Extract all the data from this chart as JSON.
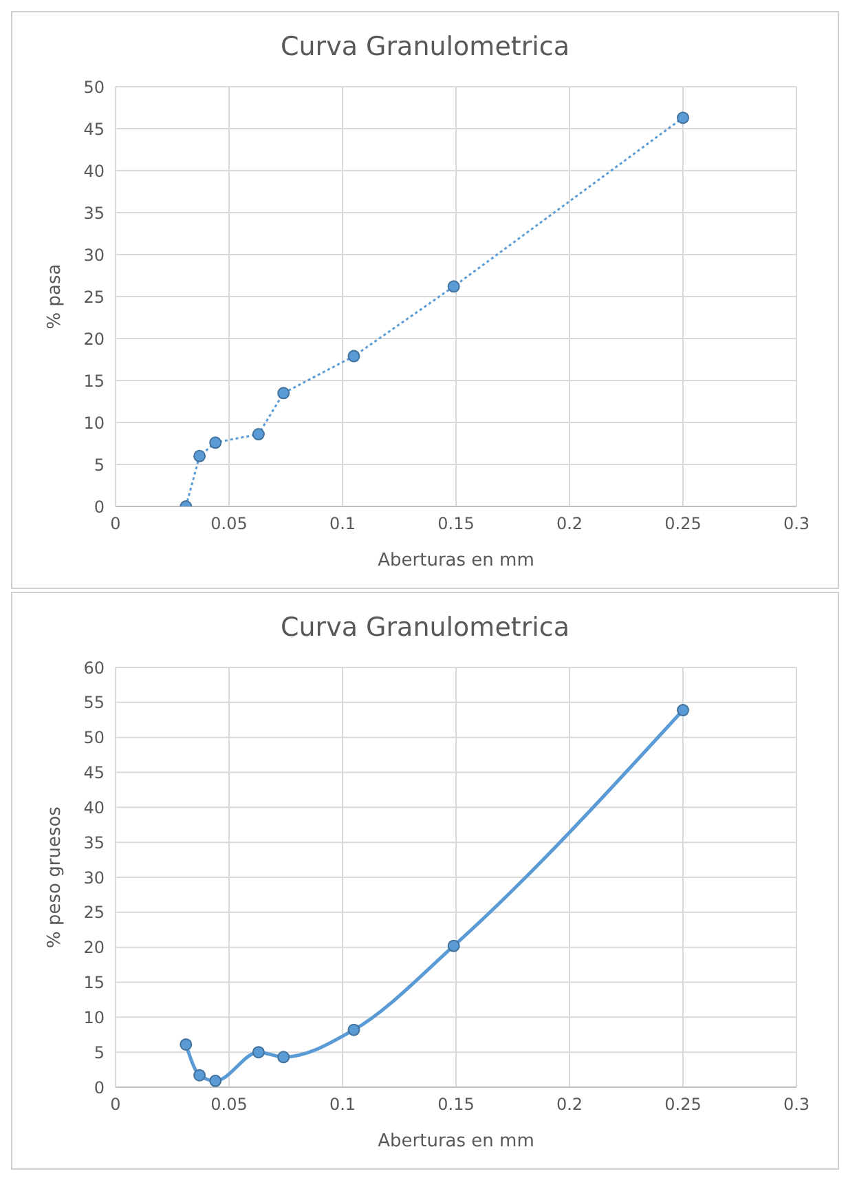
{
  "chart_data": [
    {
      "type": "line",
      "title": "Curva Granulometrica",
      "xlabel": "Aberturas en mm",
      "ylabel": "% pasa",
      "x": [
        0.031,
        0.037,
        0.044,
        0.063,
        0.074,
        0.105,
        0.149,
        0.25
      ],
      "series": [
        {
          "color": "#5b9bd5",
          "values": [
            0,
            6,
            7.6,
            8.6,
            13.5,
            17.9,
            26.2,
            46.3
          ]
        }
      ],
      "xlim": [
        0,
        0.3
      ],
      "xticks": [
        0,
        0.05,
        0.1,
        0.15,
        0.2,
        0.25,
        0.3
      ],
      "ylim": [
        0,
        50
      ],
      "yticks": [
        0,
        5,
        10,
        15,
        20,
        25,
        30,
        35,
        40,
        45,
        50
      ],
      "grid": true,
      "marker": "circle",
      "line_style": "dotted"
    },
    {
      "type": "line",
      "title": "Curva Granulometrica",
      "xlabel": "Aberturas en mm",
      "ylabel": "% peso gruesos",
      "x": [
        0.031,
        0.037,
        0.044,
        0.063,
        0.074,
        0.105,
        0.149,
        0.25
      ],
      "series": [
        {
          "color": "#5b9bd5",
          "values": [
            6.1,
            1.7,
            0.9,
            5,
            4.3,
            8.2,
            20.2,
            53.9
          ]
        }
      ],
      "xlim": [
        0,
        0.3
      ],
      "xticks": [
        0,
        0.05,
        0.1,
        0.15,
        0.2,
        0.25,
        0.3
      ],
      "ylim": [
        0,
        60
      ],
      "yticks": [
        0,
        5,
        10,
        15,
        20,
        25,
        30,
        35,
        40,
        45,
        50,
        55,
        60
      ],
      "grid": true,
      "marker": "circle",
      "line_style": "solid"
    }
  ]
}
